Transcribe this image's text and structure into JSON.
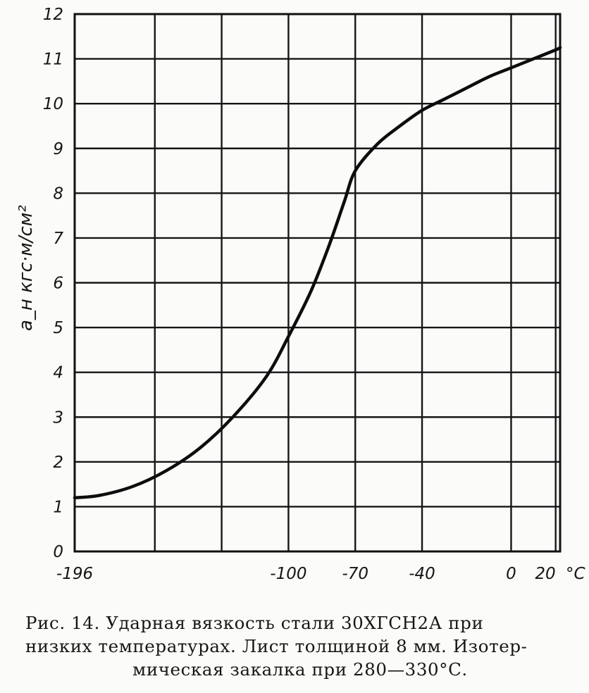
{
  "chart_data": {
    "type": "line",
    "ylabel": "a_н  кгс·м/см²",
    "x_unit": "°C",
    "x_ticks": [
      "-196",
      "-100",
      "-70",
      "-40",
      "0",
      "20"
    ],
    "x_grid": [
      -196,
      -160,
      -130,
      -100,
      -70,
      -40,
      0,
      20
    ],
    "xlim": [
      -196,
      22
    ],
    "ylim": [
      0,
      12
    ],
    "y_ticks": [
      "0",
      "1",
      "2",
      "3",
      "4",
      "5",
      "6",
      "7",
      "8",
      "9",
      "10",
      "11",
      "12"
    ],
    "grid": true,
    "x": [
      -196,
      -185,
      -170,
      -155,
      -140,
      -125,
      -110,
      -100,
      -90,
      -82,
      -75,
      -70,
      -60,
      -50,
      -40,
      -30,
      -20,
      -10,
      0,
      10,
      20,
      22
    ],
    "y": [
      1.2,
      1.25,
      1.45,
      1.8,
      2.3,
      3.0,
      3.9,
      4.8,
      5.8,
      6.8,
      7.8,
      8.5,
      9.1,
      9.5,
      9.85,
      10.1,
      10.35,
      10.6,
      10.8,
      11.0,
      11.2,
      11.25
    ]
  },
  "caption": {
    "line1": "Рис. 14. Ударная вязкость стали 30ХГСН2А при",
    "line2": "низких температурах. Лист толщиной 8 мм. Изотер-",
    "line3": "мическая закалка при 280—330°С."
  }
}
